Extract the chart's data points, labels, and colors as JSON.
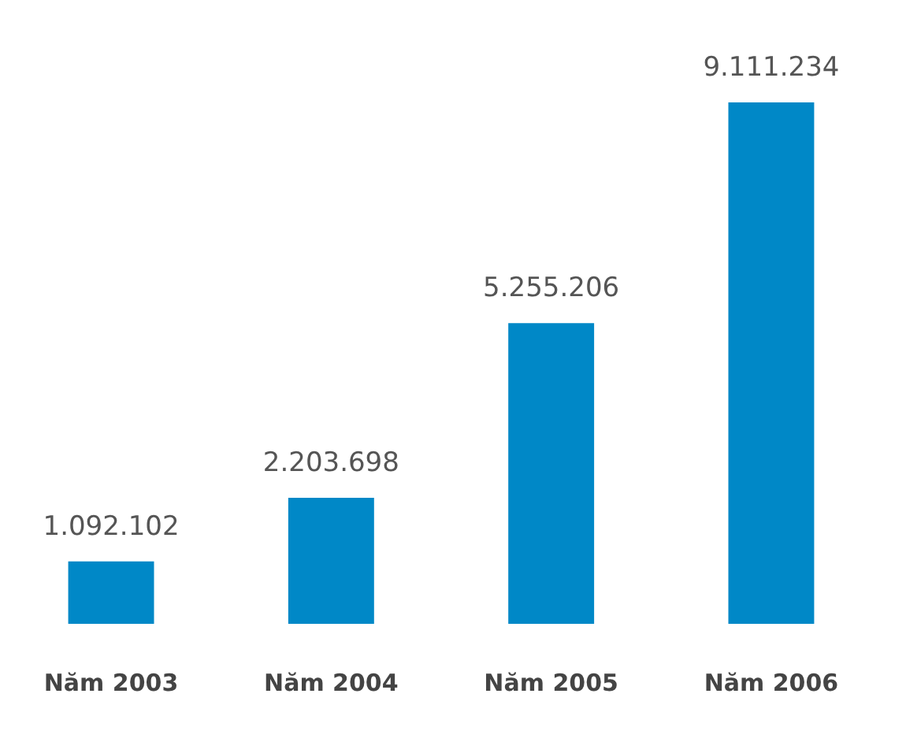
{
  "chart_data": {
    "type": "bar",
    "categories": [
      "Năm 2003",
      "Năm 2004",
      "Năm 2005",
      "Năm 2006"
    ],
    "values": [
      1092102,
      2203698,
      5255206,
      9111234
    ],
    "value_labels": [
      "1.092.102",
      "2.203.698",
      "5.255.206",
      "9.111.234"
    ],
    "color": "#0088c7",
    "grid": false,
    "tick_labels": "x"
  }
}
